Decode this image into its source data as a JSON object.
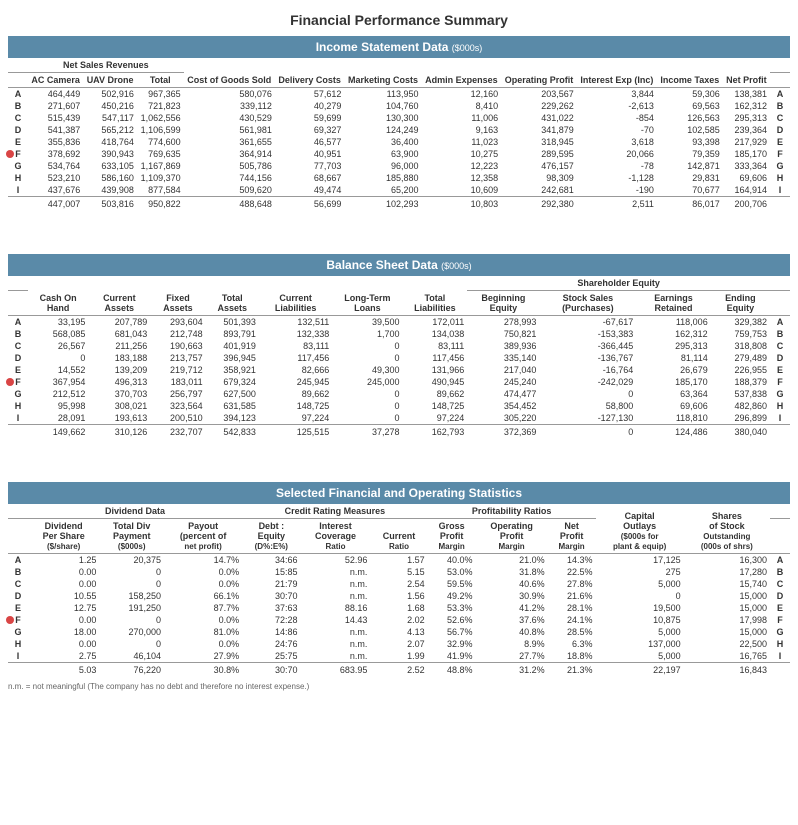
{
  "title": "Financial Performance Summary",
  "colors": {
    "header_bg": "#5a8aa8",
    "header_fg": "#ffffff",
    "highlight": "#d94545",
    "border": "#999999"
  },
  "income": {
    "title": "Income Statement Data",
    "unit": "($000s)",
    "group_headers": {
      "net_sales": "Net Sales Revenues"
    },
    "columns": [
      "AC Camera",
      "UAV Drone",
      "Total",
      "Cost of Goods Sold",
      "Delivery Costs",
      "Marketing Costs",
      "Admin Expenses",
      "Operating Profit",
      "Interest Exp (Inc)",
      "Income Taxes",
      "Net Profit"
    ],
    "row_labels": [
      "A",
      "B",
      "C",
      "D",
      "E",
      "F",
      "G",
      "H",
      "I"
    ],
    "highlight_row": "F",
    "rows": [
      [
        "464,449",
        "502,916",
        "967,365",
        "580,076",
        "57,612",
        "113,950",
        "12,160",
        "203,567",
        "3,844",
        "59,306",
        "138,381"
      ],
      [
        "271,607",
        "450,216",
        "721,823",
        "339,112",
        "40,279",
        "104,760",
        "8,410",
        "229,262",
        "-2,613",
        "69,563",
        "162,312"
      ],
      [
        "515,439",
        "547,117",
        "1,062,556",
        "430,529",
        "59,699",
        "130,300",
        "11,006",
        "431,022",
        "-854",
        "126,563",
        "295,313"
      ],
      [
        "541,387",
        "565,212",
        "1,106,599",
        "561,981",
        "69,327",
        "124,249",
        "9,163",
        "341,879",
        "-70",
        "102,585",
        "239,364"
      ],
      [
        "355,836",
        "418,764",
        "774,600",
        "361,655",
        "46,577",
        "36,400",
        "11,023",
        "318,945",
        "3,618",
        "93,398",
        "217,929"
      ],
      [
        "378,692",
        "390,943",
        "769,635",
        "364,914",
        "40,951",
        "63,900",
        "10,275",
        "289,595",
        "20,066",
        "79,359",
        "185,170"
      ],
      [
        "534,764",
        "633,105",
        "1,167,869",
        "505,786",
        "77,703",
        "96,000",
        "12,223",
        "476,157",
        "-78",
        "142,871",
        "333,364"
      ],
      [
        "523,210",
        "586,160",
        "1,109,370",
        "744,156",
        "68,667",
        "185,880",
        "12,358",
        "98,309",
        "-1,128",
        "29,831",
        "69,606"
      ],
      [
        "437,676",
        "439,908",
        "877,584",
        "509,620",
        "49,474",
        "65,200",
        "10,609",
        "242,681",
        "-190",
        "70,677",
        "164,914"
      ]
    ],
    "avg": [
      "447,007",
      "503,816",
      "950,822",
      "488,648",
      "56,699",
      "102,293",
      "10,803",
      "292,380",
      "2,511",
      "86,017",
      "200,706"
    ]
  },
  "balance": {
    "title": "Balance Sheet Data",
    "unit": "($000s)",
    "group_headers": {
      "shareholder": "Shareholder Equity"
    },
    "columns": [
      "Cash On Hand",
      "Current Assets",
      "Fixed Assets",
      "Total Assets",
      "Current Liabilities",
      "Long-Term Loans",
      "Total Liabilities",
      "Beginning Equity",
      "Stock Sales (Purchases)",
      "Earnings Retained",
      "Ending Equity"
    ],
    "row_labels": [
      "A",
      "B",
      "C",
      "D",
      "E",
      "F",
      "G",
      "H",
      "I"
    ],
    "highlight_row": "F",
    "rows": [
      [
        "33,195",
        "207,789",
        "293,604",
        "501,393",
        "132,511",
        "39,500",
        "172,011",
        "278,993",
        "-67,617",
        "118,006",
        "329,382"
      ],
      [
        "568,085",
        "681,043",
        "212,748",
        "893,791",
        "132,338",
        "1,700",
        "134,038",
        "750,821",
        "-153,383",
        "162,312",
        "759,753"
      ],
      [
        "26,567",
        "211,256",
        "190,663",
        "401,919",
        "83,111",
        "0",
        "83,111",
        "389,936",
        "-366,445",
        "295,313",
        "318,808"
      ],
      [
        "0",
        "183,188",
        "213,757",
        "396,945",
        "117,456",
        "0",
        "117,456",
        "335,140",
        "-136,767",
        "81,114",
        "279,489"
      ],
      [
        "14,552",
        "139,209",
        "219,712",
        "358,921",
        "82,666",
        "49,300",
        "131,966",
        "217,040",
        "-16,764",
        "26,679",
        "226,955"
      ],
      [
        "367,954",
        "496,313",
        "183,011",
        "679,324",
        "245,945",
        "245,000",
        "490,945",
        "245,240",
        "-242,029",
        "185,170",
        "188,379"
      ],
      [
        "212,512",
        "370,703",
        "256,797",
        "627,500",
        "89,662",
        "0",
        "89,662",
        "474,477",
        "0",
        "63,364",
        "537,838"
      ],
      [
        "95,998",
        "308,021",
        "323,564",
        "631,585",
        "148,725",
        "0",
        "148,725",
        "354,452",
        "58,800",
        "69,606",
        "482,860"
      ],
      [
        "28,091",
        "193,613",
        "200,510",
        "394,123",
        "97,224",
        "0",
        "97,224",
        "305,220",
        "-127,130",
        "118,810",
        "296,899"
      ]
    ],
    "avg": [
      "149,662",
      "310,126",
      "232,707",
      "542,833",
      "125,515",
      "37,278",
      "162,793",
      "372,369",
      "0",
      "124,486",
      "380,040"
    ]
  },
  "stats": {
    "title": "Selected Financial and Operating Statistics",
    "group_headers": {
      "dividend": "Dividend Data",
      "credit": "Credit Rating Measures",
      "profit": "Profitability Ratios"
    },
    "columns": [
      {
        "l1": "Dividend",
        "l2": "Per Share",
        "l3": "($/share)"
      },
      {
        "l1": "Total Div",
        "l2": "Payment",
        "l3": "($000s)"
      },
      {
        "l1": "Payout",
        "l2": "(percent of",
        "l3": "net profit)"
      },
      {
        "l1": "Debt :",
        "l2": "Equity",
        "l3": "(D%:E%)"
      },
      {
        "l1": "Interest",
        "l2": "Coverage",
        "l3": "Ratio"
      },
      {
        "l1": "",
        "l2": "Current",
        "l3": "Ratio"
      },
      {
        "l1": "Gross",
        "l2": "Profit",
        "l3": "Margin"
      },
      {
        "l1": "Operating",
        "l2": "Profit",
        "l3": "Margin"
      },
      {
        "l1": "Net",
        "l2": "Profit",
        "l3": "Margin"
      },
      {
        "l1": "Capital",
        "l2": "Outlays",
        "l3": "($000s for",
        "l4": "plant & equip)"
      },
      {
        "l1": "Shares",
        "l2": "of Stock",
        "l3": "Outstanding",
        "l4": "(000s of shrs)"
      }
    ],
    "row_labels": [
      "A",
      "B",
      "C",
      "D",
      "E",
      "F",
      "G",
      "H",
      "I"
    ],
    "highlight_row": "F",
    "rows": [
      [
        "1.25",
        "20,375",
        "14.7%",
        "34:66",
        "52.96",
        "1.57",
        "40.0%",
        "21.0%",
        "14.3%",
        "17,125",
        "16,300"
      ],
      [
        "0.00",
        "0",
        "0.0%",
        "15:85",
        "n.m.",
        "5.15",
        "53.0%",
        "31.8%",
        "22.5%",
        "275",
        "17,280"
      ],
      [
        "0.00",
        "0",
        "0.0%",
        "21:79",
        "n.m.",
        "2.54",
        "59.5%",
        "40.6%",
        "27.8%",
        "5,000",
        "15,740"
      ],
      [
        "10.55",
        "158,250",
        "66.1%",
        "30:70",
        "n.m.",
        "1.56",
        "49.2%",
        "30.9%",
        "21.6%",
        "0",
        "15,000"
      ],
      [
        "12.75",
        "191,250",
        "87.7%",
        "37:63",
        "88.16",
        "1.68",
        "53.3%",
        "41.2%",
        "28.1%",
        "19,500",
        "15,000"
      ],
      [
        "0.00",
        "0",
        "0.0%",
        "72:28",
        "14.43",
        "2.02",
        "52.6%",
        "37.6%",
        "24.1%",
        "10,875",
        "17,998"
      ],
      [
        "18.00",
        "270,000",
        "81.0%",
        "14:86",
        "n.m.",
        "4.13",
        "56.7%",
        "40.8%",
        "28.5%",
        "5,000",
        "15,000"
      ],
      [
        "0.00",
        "0",
        "0.0%",
        "24:76",
        "n.m.",
        "2.07",
        "32.9%",
        "8.9%",
        "6.3%",
        "137,000",
        "22,500"
      ],
      [
        "2.75",
        "46,104",
        "27.9%",
        "25:75",
        "n.m.",
        "1.99",
        "41.9%",
        "27.7%",
        "18.8%",
        "5,000",
        "16,765"
      ]
    ],
    "avg": [
      "5.03",
      "76,220",
      "30.8%",
      "30:70",
      "683.95",
      "2.52",
      "48.8%",
      "31.2%",
      "21.3%",
      "22,197",
      "16,843"
    ]
  },
  "footnote": "n.m. = not meaningful (The company has no debt and therefore no interest expense.)"
}
